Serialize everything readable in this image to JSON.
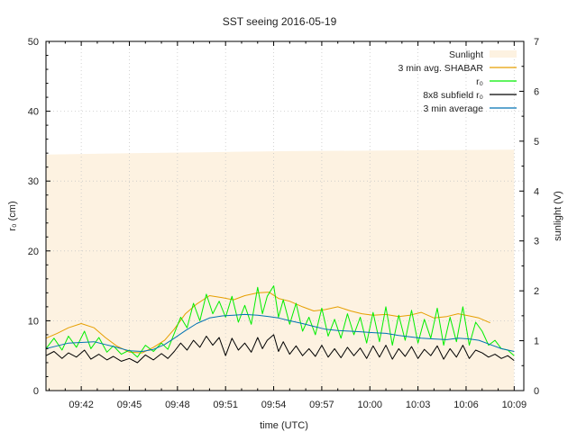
{
  "chart_data": {
    "type": "line",
    "title": "SST seeing 2016-05-19",
    "xlabel": "time (UTC)",
    "ylabel_left": "r₀ (cm)",
    "ylabel_right": "sunlight (V)",
    "xlim_minutes": [
      39.8,
      69.6
    ],
    "ylim_left": [
      0,
      50
    ],
    "ylim_right": [
      0,
      7
    ],
    "x_ticks": [
      {
        "t": 42,
        "label": "09:42"
      },
      {
        "t": 45,
        "label": "09:45"
      },
      {
        "t": 48,
        "label": "09:48"
      },
      {
        "t": 51,
        "label": "09:51"
      },
      {
        "t": 54,
        "label": "09:54"
      },
      {
        "t": 57,
        "label": "09:57"
      },
      {
        "t": 60,
        "label": "10:00"
      },
      {
        "t": 63,
        "label": "10:03"
      },
      {
        "t": 66,
        "label": "10:06"
      },
      {
        "t": 69,
        "label": "10:09"
      }
    ],
    "y_ticks_left": [
      0,
      10,
      20,
      30,
      40,
      50
    ],
    "y_ticks_right": [
      0,
      1,
      2,
      3,
      4,
      5,
      6,
      7
    ],
    "grid": true,
    "legend_position": "top-right",
    "colors": {
      "sunlight": "#fdf2e1",
      "shabar": "#e69f00",
      "r0": "#00ee00",
      "subfield": "#000000",
      "avg": "#0072b2"
    },
    "series": [
      {
        "name": "Sunlight",
        "key": "sunlight",
        "kind": "area",
        "axis": "right",
        "x": [
          39.8,
          45,
          50,
          55,
          60,
          65,
          69.0
        ],
        "values": [
          4.73,
          4.76,
          4.78,
          4.8,
          4.81,
          4.82,
          4.83
        ]
      },
      {
        "name": "3 min avg. SHABAR",
        "key": "shabar",
        "kind": "line",
        "axis": "left",
        "x": [
          39.8,
          40.5,
          41.2,
          42.0,
          42.8,
          43.5,
          44.2,
          45.0,
          45.8,
          46.5,
          47.2,
          47.8,
          48.5,
          49.2,
          50.0,
          50.8,
          51.5,
          52.2,
          53.0,
          53.7,
          54.3,
          55.0,
          55.8,
          56.5,
          57.2,
          58.0,
          58.8,
          59.5,
          60.2,
          61.0,
          61.8,
          62.5,
          63.2,
          64.0,
          64.8,
          65.5,
          66.2,
          66.8,
          67.5
        ],
        "values": [
          7.5,
          8.2,
          9.0,
          9.6,
          9.0,
          7.6,
          6.4,
          5.5,
          5.4,
          6.2,
          7.2,
          8.8,
          11.0,
          12.4,
          13.6,
          13.3,
          13.0,
          13.6,
          14.0,
          14.1,
          13.2,
          12.8,
          12.0,
          11.4,
          11.6,
          12.0,
          11.4,
          11.0,
          10.8,
          10.9,
          10.6,
          10.8,
          11.2,
          10.4,
          10.6,
          11.0,
          10.7,
          10.4,
          9.7
        ]
      },
      {
        "name": "r₀",
        "key": "r0",
        "kind": "line",
        "axis": "left",
        "x": [
          39.8,
          40.3,
          40.8,
          41.2,
          41.7,
          42.2,
          42.6,
          43.1,
          43.6,
          44.0,
          44.5,
          45.0,
          45.5,
          46.0,
          46.5,
          47.0,
          47.4,
          47.8,
          48.2,
          48.6,
          49.0,
          49.4,
          49.8,
          50.2,
          50.6,
          51.0,
          51.4,
          51.8,
          52.2,
          52.6,
          53.0,
          53.3,
          53.6,
          54.0,
          54.3,
          54.6,
          55.0,
          55.4,
          55.8,
          56.2,
          56.6,
          57.0,
          57.4,
          57.8,
          58.2,
          58.6,
          59.0,
          59.4,
          59.8,
          60.2,
          60.6,
          61.0,
          61.4,
          61.8,
          62.2,
          62.6,
          63.0,
          63.4,
          63.8,
          64.2,
          64.6,
          65.0,
          65.4,
          65.8,
          66.2,
          66.6,
          67.0,
          67.4,
          67.8,
          68.2,
          68.6,
          69.0
        ],
        "values": [
          6.0,
          7.5,
          5.8,
          7.8,
          6.2,
          8.5,
          6.0,
          7.6,
          5.5,
          6.4,
          5.2,
          5.8,
          4.8,
          6.5,
          5.6,
          6.8,
          5.9,
          8.2,
          10.5,
          9.0,
          12.5,
          10.0,
          13.8,
          11.0,
          12.8,
          10.5,
          13.5,
          9.8,
          12.2,
          9.5,
          14.8,
          11.0,
          13.5,
          15.0,
          10.5,
          13.0,
          9.5,
          12.5,
          8.5,
          10.5,
          8.0,
          11.8,
          7.8,
          10.2,
          7.5,
          11.0,
          8.0,
          10.5,
          6.8,
          11.2,
          7.0,
          12.0,
          6.5,
          10.8,
          7.2,
          11.5,
          6.8,
          10.2,
          7.5,
          11.8,
          6.5,
          10.5,
          7.0,
          12.0,
          6.5,
          9.8,
          8.5,
          6.5,
          7.2,
          6.0,
          5.8,
          5.0
        ]
      },
      {
        "name": "8x8 subfield r₀",
        "key": "subfield",
        "kind": "line",
        "axis": "left",
        "x": [
          39.8,
          40.3,
          40.8,
          41.2,
          41.7,
          42.2,
          42.6,
          43.1,
          43.6,
          44.0,
          44.5,
          45.0,
          45.5,
          46.0,
          46.5,
          47.0,
          47.4,
          47.8,
          48.2,
          48.6,
          49.0,
          49.4,
          49.8,
          50.2,
          50.6,
          51.0,
          51.4,
          51.8,
          52.2,
          52.6,
          53.0,
          53.3,
          53.6,
          54.0,
          54.3,
          54.6,
          55.0,
          55.4,
          55.8,
          56.2,
          56.6,
          57.0,
          57.4,
          57.8,
          58.2,
          58.6,
          59.0,
          59.4,
          59.8,
          60.2,
          60.6,
          61.0,
          61.4,
          61.8,
          62.2,
          62.6,
          63.0,
          63.4,
          63.8,
          64.2,
          64.6,
          65.0,
          65.4,
          65.8,
          66.2,
          66.6,
          67.0,
          67.4,
          67.8,
          68.2,
          68.6,
          69.0
        ],
        "values": [
          5.0,
          5.6,
          4.6,
          5.4,
          4.8,
          5.8,
          4.5,
          5.2,
          4.4,
          4.9,
          4.2,
          4.6,
          4.0,
          5.1,
          4.4,
          5.3,
          4.6,
          5.6,
          6.8,
          5.8,
          7.2,
          6.2,
          7.8,
          6.5,
          7.6,
          5.0,
          7.5,
          5.8,
          6.8,
          5.5,
          7.6,
          6.0,
          7.2,
          8.0,
          5.6,
          7.0,
          5.2,
          6.4,
          5.0,
          6.0,
          4.9,
          6.5,
          4.8,
          6.0,
          4.7,
          6.2,
          5.0,
          6.1,
          4.6,
          6.4,
          4.8,
          6.5,
          4.5,
          6.0,
          4.9,
          6.3,
          4.6,
          5.9,
          5.0,
          6.4,
          4.5,
          6.0,
          4.8,
          6.5,
          4.6,
          5.8,
          5.4,
          4.8,
          5.2,
          4.6,
          5.0,
          4.3
        ]
      },
      {
        "name": "3 min average",
        "key": "avg",
        "kind": "line",
        "axis": "left",
        "x": [
          39.8,
          40.5,
          41.2,
          42.0,
          42.8,
          43.5,
          44.2,
          45.0,
          45.8,
          46.5,
          47.2,
          47.8,
          48.5,
          49.2,
          50.0,
          50.8,
          51.5,
          52.2,
          53.0,
          53.7,
          54.3,
          55.0,
          55.8,
          56.5,
          57.2,
          58.0,
          58.8,
          59.5,
          60.2,
          61.0,
          61.8,
          62.5,
          63.2,
          64.0,
          64.8,
          65.5,
          66.2,
          66.8,
          67.5,
          68.2,
          69.0
        ],
        "values": [
          6.0,
          6.4,
          6.8,
          6.9,
          7.0,
          6.6,
          6.2,
          5.7,
          5.6,
          5.9,
          6.6,
          7.5,
          8.6,
          9.6,
          10.4,
          10.7,
          10.8,
          10.9,
          10.8,
          10.6,
          10.4,
          10.0,
          9.6,
          9.2,
          8.8,
          8.6,
          8.5,
          8.4,
          8.3,
          8.2,
          7.9,
          7.7,
          7.5,
          7.4,
          7.3,
          7.5,
          7.4,
          7.2,
          6.6,
          6.0,
          5.6
        ]
      }
    ],
    "legend": [
      {
        "key": "sunlight",
        "label": "Sunlight",
        "kind": "area"
      },
      {
        "key": "shabar",
        "label": "3 min avg. SHABAR",
        "kind": "line"
      },
      {
        "key": "r0",
        "label": "r₀",
        "kind": "line"
      },
      {
        "key": "subfield",
        "label": "8x8 subfield r₀",
        "kind": "line"
      },
      {
        "key": "avg",
        "label": "3 min average",
        "kind": "line"
      }
    ]
  }
}
